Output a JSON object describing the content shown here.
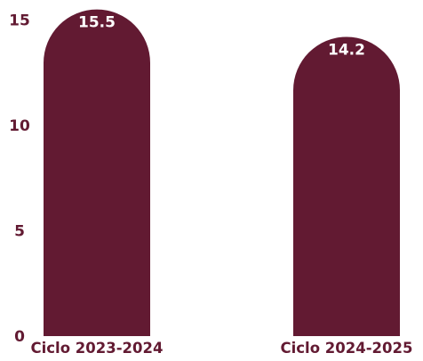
{
  "chart_data": {
    "type": "bar",
    "title": "",
    "xlabel": "",
    "ylabel": "",
    "categories": [
      "Ciclo 2023-2024",
      "Ciclo 2024-2025"
    ],
    "values": [
      15.5,
      14.2
    ],
    "data_labels": [
      "15.5",
      "14.2"
    ],
    "ylim": [
      0,
      16
    ],
    "yticks": [
      0,
      5,
      10,
      15
    ],
    "ytick_labels": [
      "0",
      "5",
      "10",
      "15"
    ],
    "grid": false,
    "legend": "none",
    "colors": {
      "bar": "#621a32",
      "axis_text": "#621a32",
      "data_label": "#ffffff"
    }
  }
}
